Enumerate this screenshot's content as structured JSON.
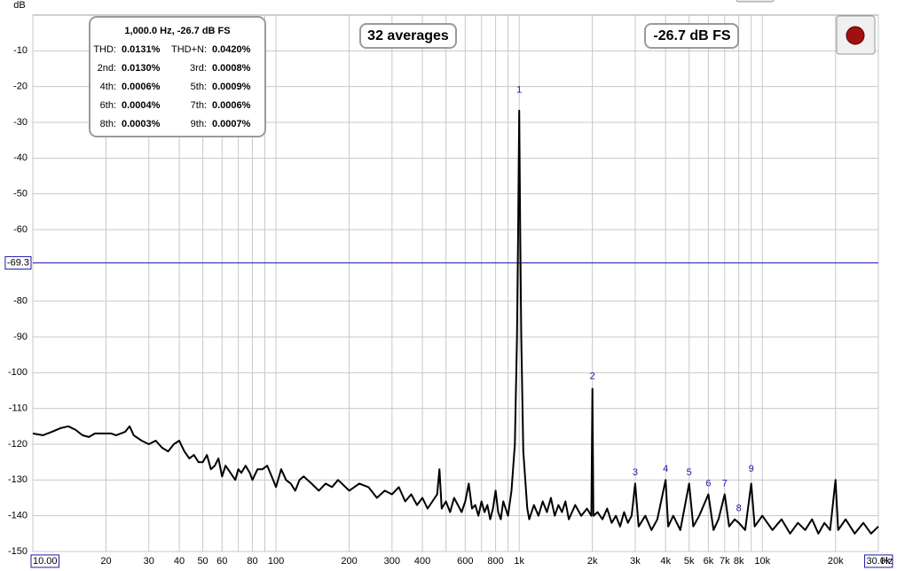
{
  "chart_data": {
    "type": "line",
    "y_label": "dB",
    "x_label": "Hz",
    "xscale": "log",
    "xlim": [
      10,
      30000
    ],
    "ylim": [
      -150,
      0
    ],
    "xticks": [
      {
        "value": 10,
        "label": "10.00"
      },
      20,
      30,
      40,
      50,
      60,
      80,
      100,
      200,
      300,
      400,
      600,
      800,
      {
        "value": 1000,
        "label": "1k"
      },
      {
        "value": 2000,
        "label": "2k"
      },
      {
        "value": 3000,
        "label": "3k"
      },
      {
        "value": 4000,
        "label": "4k"
      },
      {
        "value": 5000,
        "label": "5k"
      },
      {
        "value": 6000,
        "label": "6k"
      },
      {
        "value": 7000,
        "label": "7k"
      },
      {
        "value": 8000,
        "label": "8k"
      },
      {
        "value": 10000,
        "label": "10k"
      },
      {
        "value": 20000,
        "label": "20k"
      },
      {
        "value": 30000,
        "label": "30.0k"
      }
    ],
    "x_minor_ticks": [
      70,
      90,
      500,
      700,
      900,
      9000
    ],
    "yticks": [
      -10,
      -20,
      -30,
      -40,
      -50,
      -60,
      -80,
      -90,
      -100,
      -110,
      -120,
      -130,
      -140,
      -150
    ],
    "grid": true,
    "cursor": {
      "value": -69.3,
      "label": "-69.3",
      "color": "#1a1aa8"
    },
    "series": [
      {
        "color": "#000000",
        "x": [
          10,
          11,
          12,
          13,
          14,
          15,
          16,
          17,
          18,
          19,
          21,
          22,
          24,
          25,
          26,
          28,
          30,
          32,
          34,
          36,
          38,
          40,
          42,
          44,
          46,
          48,
          50,
          52,
          54,
          56,
          58,
          60,
          62,
          65,
          68,
          70,
          72,
          75,
          78,
          80,
          84,
          88,
          92,
          96,
          100,
          105,
          110,
          115,
          120,
          125,
          130,
          140,
          150,
          160,
          170,
          180,
          200,
          220,
          240,
          260,
          280,
          300,
          320,
          340,
          360,
          380,
          400,
          420,
          440,
          460,
          470,
          480,
          500,
          520,
          540,
          560,
          580,
          600,
          620,
          640,
          660,
          680,
          700,
          720,
          740,
          760,
          780,
          800,
          820,
          840,
          860,
          880,
          900,
          930,
          960,
          980,
          990,
          1000,
          1010,
          1020,
          1040,
          1080,
          1100,
          1150,
          1200,
          1250,
          1300,
          1350,
          1400,
          1450,
          1500,
          1550,
          1600,
          1700,
          1800,
          1900,
          1980,
          2000,
          2020,
          2100,
          2200,
          2300,
          2400,
          2500,
          2600,
          2700,
          2800,
          2900,
          3000,
          3100,
          3300,
          3500,
          3700,
          4000,
          4100,
          4300,
          4600,
          5000,
          5200,
          5500,
          6000,
          6300,
          6600,
          7000,
          7300,
          7700,
          8000,
          8500,
          9000,
          9300,
          10000,
          11000,
          12000,
          13000,
          14000,
          15000,
          16000,
          17000,
          18000,
          19000,
          20000,
          20500,
          22000,
          24000,
          26000,
          28000,
          30000
        ],
        "values": [
          -117,
          -117.5,
          -116.5,
          -115.5,
          -115,
          -116,
          -117.5,
          -118,
          -117,
          -117,
          -117,
          -117.5,
          -116.5,
          -115,
          -117.5,
          -119,
          -120,
          -119,
          -121,
          -122,
          -120,
          -119,
          -122,
          -124,
          -123,
          -125,
          -125,
          -123,
          -127,
          -126,
          -124,
          -129,
          -126,
          -128,
          -130,
          -127,
          -128,
          -126,
          -128,
          -130,
          -127,
          -127,
          -126,
          -129,
          -132,
          -127,
          -130,
          -131,
          -133,
          -130,
          -129,
          -131,
          -133,
          -131,
          -132,
          -130,
          -133,
          -131,
          -132,
          -135,
          -133,
          -134,
          -132,
          -136,
          -134,
          -137,
          -135,
          -138,
          -136,
          -134,
          -127,
          -138,
          -136,
          -139,
          -135,
          -137,
          -139,
          -136,
          -131,
          -138,
          -137,
          -140,
          -136,
          -139,
          -137,
          -141,
          -138,
          -133,
          -139,
          -141,
          -136,
          -138,
          -140,
          -133,
          -120,
          -90,
          -60,
          -26.7,
          -60,
          -90,
          -122,
          -138,
          -141,
          -137,
          -140,
          -136,
          -139,
          -135,
          -140,
          -137,
          -139,
          -136,
          -141,
          -137,
          -140,
          -138,
          -140,
          -104.5,
          -140,
          -139,
          -141,
          -138,
          -142,
          -140,
          -143,
          -139,
          -142,
          -140,
          -131,
          -143,
          -140,
          -144,
          -141,
          -130,
          -143,
          -140,
          -144,
          -131,
          -143,
          -140,
          -134,
          -144,
          -141,
          -134,
          -143,
          -141,
          -142,
          -144,
          -131,
          -143,
          -140,
          -144,
          -141,
          -145,
          -142,
          -144,
          -141,
          -145,
          -142,
          -144,
          -130,
          -144,
          -141,
          -145,
          -142,
          -145,
          -143
        ]
      }
    ],
    "harmonics": {
      "color": "#1a1aa8",
      "items": [
        {
          "n": 1,
          "x": 1000,
          "y": -22
        },
        {
          "n": 2,
          "x": 2000,
          "y": -102
        },
        {
          "n": 3,
          "x": 3000,
          "y": -129
        },
        {
          "n": 4,
          "x": 4000,
          "y": -128
        },
        {
          "n": 5,
          "x": 5000,
          "y": -129
        },
        {
          "n": 6,
          "x": 6000,
          "y": -132
        },
        {
          "n": 7,
          "x": 7000,
          "y": -132
        },
        {
          "n": 8,
          "x": 8000,
          "y": -139
        },
        {
          "n": 9,
          "x": 9000,
          "y": -128
        }
      ]
    },
    "info_box": {
      "title": "1,000.0 Hz, -26.7 dB FS",
      "rows": [
        [
          "THD:",
          "0.0131%",
          "THD+N:",
          "0.0420%"
        ],
        [
          "2nd:",
          "0.0130%",
          "3rd:",
          "0.0008%"
        ],
        [
          "4th:",
          "0.0006%",
          "5th:",
          "0.0009%"
        ],
        [
          "6th:",
          "0.0004%",
          "7th:",
          "0.0006%"
        ],
        [
          "8th:",
          "0.0003%",
          "9th:",
          "0.0007%"
        ]
      ]
    },
    "averages_badge": "32 averages",
    "level_badge": "-26.7 dB FS"
  }
}
